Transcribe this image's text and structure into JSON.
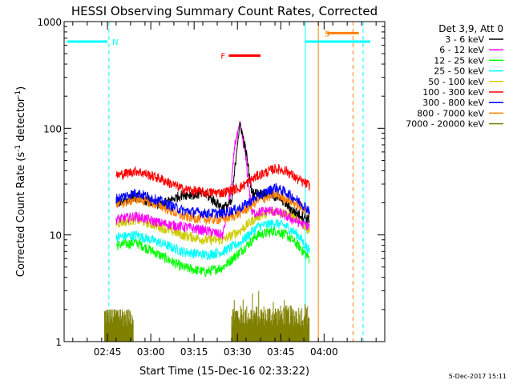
{
  "chart_data": {
    "type": "line",
    "title": "HESSI Observing Summary Count Rates, Corrected",
    "xlabel": "Start Time (15-Dec-16 02:33:22)",
    "ylabel_main": "Corrected Count Rate (s",
    "ylabel_sup1": "-1",
    "ylabel_mid": " detector",
    "ylabel_sup2": "-1",
    "ylabel_end": ")",
    "y_scale": "log",
    "ylim": [
      1,
      1000
    ],
    "y_ticks": [
      {
        "value": 1,
        "label": "1"
      },
      {
        "value": 10,
        "label": "10"
      },
      {
        "value": 100,
        "label": "100"
      },
      {
        "value": 1000,
        "label": "1000"
      }
    ],
    "xlim_minutes": [
      -3,
      108
    ],
    "x_ticks": [
      {
        "minute": 12,
        "label": "02:45"
      },
      {
        "minute": 27,
        "label": "03:00"
      },
      {
        "minute": 42,
        "label": "03:15"
      },
      {
        "minute": 57,
        "label": "03:30"
      },
      {
        "minute": 72,
        "label": "03:45"
      },
      {
        "minute": 87,
        "label": "04:00"
      }
    ],
    "legend": {
      "header": "Det 3,9, Att 0",
      "placement": "right",
      "entries": [
        {
          "label": "3 - 6 keV",
          "color": "#000000"
        },
        {
          "label": "6 - 12 keV",
          "color": "#ff00ff"
        },
        {
          "label": "12 - 25 keV",
          "color": "#00ff00"
        },
        {
          "label": "25 - 50 keV",
          "color": "#00ffff"
        },
        {
          "label": "50 - 100 keV",
          "color": "#cccc00"
        },
        {
          "label": "100 - 300 keV",
          "color": "#ff0000"
        },
        {
          "label": "300 - 800 keV",
          "color": "#0000ff"
        },
        {
          "label": "800 - 7000 keV",
          "color": "#ff8000"
        },
        {
          "label": "7000 - 20000 keV",
          "color": "#808000"
        }
      ]
    },
    "series": [
      {
        "name": "3 - 6 keV",
        "color": "#000000",
        "points": [
          [
            15,
            20
          ],
          [
            22,
            23
          ],
          [
            30,
            19
          ],
          [
            38,
            24
          ],
          [
            46,
            24
          ],
          [
            52,
            18
          ],
          [
            55,
            20
          ],
          [
            57,
            75
          ],
          [
            58,
            110
          ],
          [
            60,
            60
          ],
          [
            62,
            25
          ],
          [
            68,
            24
          ],
          [
            72,
            22
          ],
          [
            76,
            17
          ],
          [
            82,
            14
          ]
        ]
      },
      {
        "name": "6 - 12 keV",
        "color": "#ff00ff",
        "points": [
          [
            15,
            14
          ],
          [
            22,
            15
          ],
          [
            30,
            13
          ],
          [
            38,
            12
          ],
          [
            46,
            11
          ],
          [
            52,
            10
          ],
          [
            55,
            30
          ],
          [
            56,
            70
          ],
          [
            57,
            85
          ],
          [
            58,
            110
          ],
          [
            60,
            50
          ],
          [
            62,
            16
          ],
          [
            68,
            17
          ],
          [
            72,
            16
          ],
          [
            76,
            14
          ],
          [
            82,
            12
          ]
        ]
      },
      {
        "name": "12 - 25 keV",
        "color": "#00ff00",
        "points": [
          [
            15,
            8
          ],
          [
            22,
            8.5
          ],
          [
            30,
            6.5
          ],
          [
            38,
            5
          ],
          [
            46,
            4.5
          ],
          [
            52,
            5
          ],
          [
            58,
            7
          ],
          [
            64,
            10
          ],
          [
            70,
            11
          ],
          [
            74,
            10
          ],
          [
            78,
            8
          ],
          [
            82,
            6
          ]
        ]
      },
      {
        "name": "25 - 50 keV",
        "color": "#00ffff",
        "points": [
          [
            15,
            9.5
          ],
          [
            22,
            10
          ],
          [
            30,
            8.5
          ],
          [
            38,
            7
          ],
          [
            46,
            6.5
          ],
          [
            52,
            7
          ],
          [
            58,
            8.5
          ],
          [
            64,
            12
          ],
          [
            70,
            13
          ],
          [
            74,
            12
          ],
          [
            78,
            10
          ],
          [
            82,
            7
          ]
        ]
      },
      {
        "name": "50 - 100 keV",
        "color": "#cccc00",
        "points": [
          [
            15,
            13
          ],
          [
            22,
            14
          ],
          [
            30,
            12
          ],
          [
            38,
            10
          ],
          [
            46,
            9
          ],
          [
            52,
            9
          ],
          [
            58,
            11
          ],
          [
            64,
            15
          ],
          [
            70,
            17
          ],
          [
            74,
            16
          ],
          [
            78,
            14
          ],
          [
            82,
            11
          ]
        ]
      },
      {
        "name": "100 - 300 keV",
        "color": "#ff0000",
        "points": [
          [
            15,
            36
          ],
          [
            22,
            40
          ],
          [
            30,
            34
          ],
          [
            38,
            27
          ],
          [
            46,
            25
          ],
          [
            52,
            25
          ],
          [
            58,
            28
          ],
          [
            64,
            36
          ],
          [
            70,
            42
          ],
          [
            74,
            40
          ],
          [
            78,
            33
          ],
          [
            82,
            29
          ]
        ]
      },
      {
        "name": "300 - 800 keV",
        "color": "#0000ff",
        "points": [
          [
            15,
            22
          ],
          [
            22,
            25
          ],
          [
            30,
            21
          ],
          [
            38,
            17
          ],
          [
            46,
            16
          ],
          [
            52,
            16
          ],
          [
            58,
            18
          ],
          [
            64,
            23
          ],
          [
            70,
            28
          ],
          [
            74,
            25
          ],
          [
            78,
            21
          ],
          [
            82,
            17
          ]
        ]
      },
      {
        "name": "800 - 7000 keV",
        "color": "#ff8000",
        "points": [
          [
            15,
            19
          ],
          [
            22,
            22
          ],
          [
            30,
            19
          ],
          [
            38,
            15
          ],
          [
            46,
            14
          ],
          [
            52,
            14
          ],
          [
            58,
            16
          ],
          [
            64,
            21
          ],
          [
            70,
            24
          ],
          [
            74,
            22
          ],
          [
            78,
            19
          ],
          [
            82,
            16
          ]
        ]
      },
      {
        "name": "7000 - 20000 keV",
        "color": "#808000",
        "points": []
      }
    ],
    "bursts": [
      {
        "color": "#808000",
        "from_minute": 11,
        "to_minute": 21,
        "max": 2
      },
      {
        "color": "#808000",
        "from_minute": 55,
        "to_minute": 82,
        "max": 3
      }
    ],
    "annotations": [
      {
        "label": "N",
        "color": "#00ffff",
        "kind": "night",
        "bar_from_minute": -2,
        "bar_to_minute": 12,
        "bar_y": 650
      },
      {
        "label": "S",
        "color": "#ff8000",
        "kind": "saa",
        "bar_from_minute": 88,
        "bar_to_minute": 99,
        "bar_y": 780
      },
      {
        "label": "F",
        "color": "#ff0000",
        "kind": "flare",
        "bar_from_minute": 54,
        "bar_to_minute": 65,
        "bar_y": 480
      }
    ],
    "vertical_markers": [
      {
        "minute": 12.5,
        "color": "#00ffff",
        "style": "dashed"
      },
      {
        "minute": 80.5,
        "color": "#00ffff",
        "style": "solid"
      },
      {
        "minute": 85,
        "color": "#ff8000",
        "style": "solid"
      },
      {
        "minute": 97,
        "color": "#ff8000",
        "style": "dashed"
      },
      {
        "minute": 100.5,
        "color": "#00ffff",
        "style": "dashed"
      }
    ],
    "night_right_bar": {
      "from_minute": 80.5,
      "to_minute": 103,
      "y": 650,
      "color": "#00ffff"
    }
  },
  "timestamp": "5-Dec-2017 15:11"
}
